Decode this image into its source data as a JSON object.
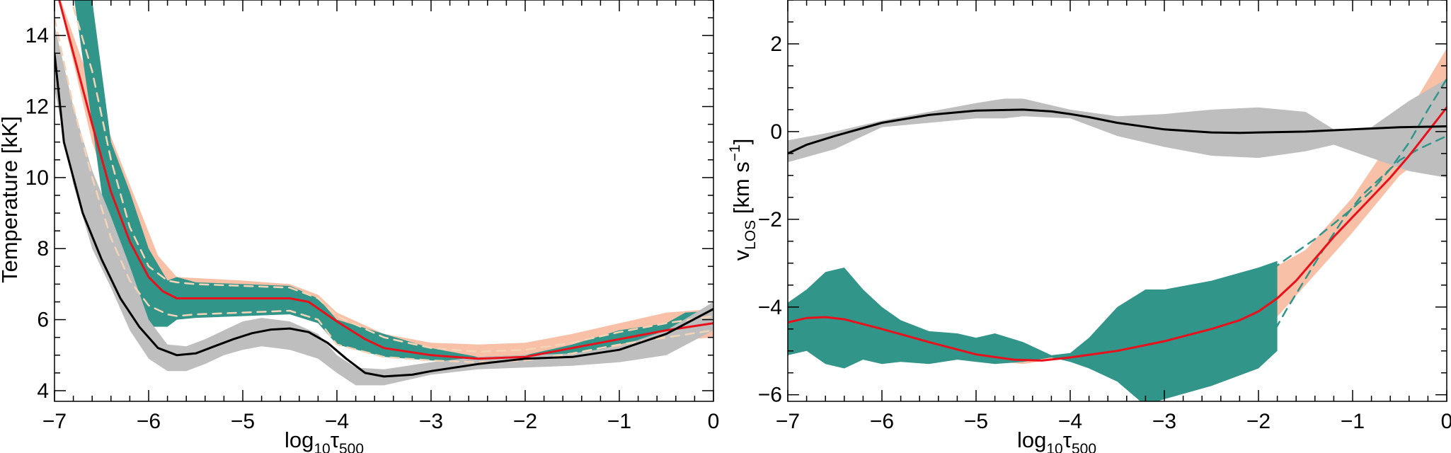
{
  "chart_data": [
    {
      "type": "line",
      "xlabel": {
        "main": "log",
        "sub1": "10",
        "sym": "τ",
        "sub2": "500"
      },
      "ylabel": {
        "text": "Temperature [kK]"
      },
      "xlim": [
        -7,
        0
      ],
      "ylim": [
        3.7,
        15.0
      ],
      "xticks": [
        -7,
        -6,
        -5,
        -4,
        -3,
        -2,
        -1,
        0
      ],
      "xtick_labels": [
        "−7",
        "−6",
        "−5",
        "−4",
        "−3",
        "−2",
        "−1",
        "0"
      ],
      "yticks": [
        4,
        6,
        8,
        10,
        12,
        14
      ],
      "ytick_labels": [
        "4",
        "6",
        "8",
        "10",
        "12",
        "14"
      ],
      "grid": false,
      "colors": {
        "black_band": "#bebebe",
        "teal_band": "#32958a",
        "salmon_band": "#f9c0a8",
        "red_line": "#e8101a",
        "black_line": "#000000",
        "dashed": "#f3d4b6"
      },
      "bands": [
        {
          "color": "salmon",
          "x": [
            -7,
            -6.6,
            -6.2,
            -5.9,
            -5.7,
            -5,
            -4.5,
            -4.2,
            -4,
            -3.5,
            -3,
            -2.5,
            -2,
            -1.5,
            -1,
            -0.5,
            0
          ],
          "upper": [
            15.5,
            12.5,
            9.8,
            7.8,
            7.2,
            7.1,
            7.0,
            6.7,
            6.2,
            5.6,
            5.35,
            5.3,
            5.35,
            5.6,
            5.9,
            6.2,
            6.3
          ],
          "lower": [
            15.5,
            11.0,
            7.8,
            6.2,
            6.1,
            6.25,
            6.3,
            6.0,
            5.4,
            5.0,
            4.85,
            4.8,
            4.85,
            5.05,
            5.2,
            5.4,
            5.5
          ]
        },
        {
          "color": "teal",
          "x": [
            -7,
            -6.8,
            -6.6,
            -6.4,
            -6.2,
            -6.0,
            -5.8,
            -5.7,
            -5.5,
            -5.0,
            -4.5,
            -4.2,
            -4.0,
            -3.5,
            -3.0,
            -2.5,
            -2.0,
            -1.5,
            -1.0,
            -0.5,
            -0.3,
            0
          ],
          "upper": [
            15.5,
            15.5,
            15.0,
            11.0,
            9.6,
            8.0,
            7.1,
            7.2,
            7.05,
            7.0,
            6.95,
            6.6,
            6.0,
            5.6,
            5.2,
            4.95,
            5.0,
            5.3,
            5.7,
            5.9,
            6.2,
            6.25
          ],
          "lower": [
            15.5,
            15.2,
            11.5,
            7.7,
            7.4,
            5.8,
            5.8,
            6.0,
            6.05,
            6.1,
            6.15,
            5.9,
            5.3,
            4.95,
            4.85,
            4.8,
            4.75,
            4.95,
            5.3,
            5.6,
            5.75,
            5.75
          ]
        },
        {
          "color": "gray",
          "x": [
            -7,
            -6.8,
            -6.6,
            -6.4,
            -6.2,
            -6.0,
            -5.8,
            -5.6,
            -5.4,
            -5.2,
            -5.0,
            -4.8,
            -4.5,
            -4.2,
            -4.0,
            -3.8,
            -3.5,
            -3.0,
            -2.5,
            -2.0,
            -1.5,
            -1.0,
            -0.5,
            0
          ],
          "upper": [
            14.3,
            12.0,
            10.2,
            8.9,
            7.5,
            6.0,
            5.3,
            5.25,
            5.45,
            5.7,
            5.95,
            6.05,
            5.95,
            5.6,
            5.0,
            4.65,
            4.6,
            4.8,
            4.95,
            5.0,
            5.05,
            5.25,
            5.7,
            6.5
          ],
          "lower": [
            12.5,
            9.8,
            8.0,
            6.9,
            5.7,
            4.9,
            4.55,
            4.55,
            4.75,
            5.0,
            5.15,
            5.25,
            5.15,
            4.9,
            4.5,
            4.15,
            4.15,
            4.45,
            4.6,
            4.65,
            4.7,
            4.8,
            5.0,
            5.7
          ]
        }
      ],
      "series": [
        {
          "color": "dashed",
          "x": [
            -6.8,
            -6.6,
            -6.4,
            -6.2,
            -6.0,
            -5.8,
            -5.7,
            -5.5,
            -5.0,
            -4.5,
            -4.2,
            -4.0,
            -3.5,
            -3.0,
            -2.5,
            -2.0,
            -1.5,
            -1.0,
            -0.5,
            0
          ],
          "y": [
            14.8,
            13.0,
            10.5,
            8.6,
            7.5,
            7.1,
            7.05,
            7.0,
            6.95,
            6.9,
            6.6,
            6.1,
            5.5,
            5.2,
            5.1,
            5.15,
            5.35,
            5.65,
            5.9,
            6.1
          ]
        },
        {
          "color": "dashed",
          "x": [
            -7,
            -6.8,
            -6.6,
            -6.4,
            -6.2,
            -6.0,
            -5.8,
            -5.7,
            -5.5,
            -5.0,
            -4.5,
            -4.2,
            -4.0,
            -3.5,
            -3.0,
            -2.5,
            -2.0,
            -1.5,
            -1.0,
            -0.5,
            0
          ],
          "y": [
            14.5,
            12.0,
            10.0,
            8.3,
            7.1,
            6.4,
            6.15,
            6.1,
            6.15,
            6.2,
            6.25,
            6.0,
            5.3,
            4.95,
            4.85,
            4.8,
            4.85,
            5.05,
            5.3,
            5.5,
            5.7
          ]
        },
        {
          "color": "red",
          "x": [
            -7,
            -6.8,
            -6.6,
            -6.4,
            -6.2,
            -6.0,
            -5.85,
            -5.7,
            -5.5,
            -5.0,
            -4.5,
            -4.3,
            -4.0,
            -3.7,
            -3.5,
            -3.0,
            -2.5,
            -2.0,
            -1.5,
            -1.0,
            -0.5,
            0
          ],
          "y": [
            15.5,
            13.5,
            11.5,
            9.6,
            8.2,
            7.2,
            6.8,
            6.6,
            6.6,
            6.6,
            6.6,
            6.5,
            5.95,
            5.45,
            5.2,
            5.0,
            4.9,
            4.95,
            5.2,
            5.45,
            5.7,
            5.9
          ]
        },
        {
          "color": "black",
          "x": [
            -7,
            -6.9,
            -6.7,
            -6.5,
            -6.3,
            -6.1,
            -5.9,
            -5.7,
            -5.5,
            -5.3,
            -5.1,
            -4.9,
            -4.7,
            -4.5,
            -4.3,
            -4.1,
            -3.9,
            -3.7,
            -3.5,
            -3.2,
            -3.0,
            -2.5,
            -2.0,
            -1.5,
            -1.0,
            -0.5,
            0
          ],
          "y": [
            13.5,
            11.0,
            9.0,
            7.7,
            6.6,
            5.8,
            5.2,
            5.0,
            5.05,
            5.25,
            5.45,
            5.62,
            5.72,
            5.75,
            5.65,
            5.35,
            4.9,
            4.5,
            4.4,
            4.45,
            4.55,
            4.75,
            4.9,
            4.95,
            5.15,
            5.6,
            6.3
          ]
        }
      ]
    },
    {
      "type": "line",
      "xlabel": {
        "main": "log",
        "sub1": "10",
        "sym": "τ",
        "sub2": "500"
      },
      "ylabel": {
        "main": "v",
        "sub": "LOS",
        "unit_start": " [km s",
        "sup": "−1",
        "unit_end": "]"
      },
      "xlim": [
        -7,
        0
      ],
      "ylim": [
        -6.15,
        3.0
      ],
      "xticks": [
        -7,
        -6,
        -5,
        -4,
        -3,
        -2,
        -1,
        0
      ],
      "xtick_labels": [
        "−7",
        "−6",
        "−5",
        "−4",
        "−3",
        "−2",
        "−1",
        "0"
      ],
      "yticks": [
        -6,
        -4,
        -2,
        0,
        2
      ],
      "ytick_labels": [
        "−6",
        "−4",
        "−2",
        "0",
        "2"
      ],
      "grid": false,
      "colors": {
        "black_band": "#bebebe",
        "teal_band": "#32958a",
        "salmon_band": "#f9c0a8",
        "red_line": "#e8101a",
        "black_line": "#000000",
        "dashed": "#32958a"
      },
      "bands": [
        {
          "color": "salmon",
          "x": [
            -7,
            -6.5,
            -6,
            -5.5,
            -5,
            -4.5,
            -4.2,
            -4,
            -3.5,
            -3,
            -2.5,
            -2,
            -1.5,
            -1,
            -0.5,
            0
          ],
          "upper": [
            -4.0,
            -4.05,
            -4.3,
            -4.6,
            -4.9,
            -5.1,
            -5.15,
            -5.05,
            -4.6,
            -4.1,
            -3.7,
            -3.3,
            -2.7,
            -1.5,
            0.1,
            1.9
          ],
          "lower": [
            -4.6,
            -4.45,
            -4.7,
            -4.95,
            -5.2,
            -5.3,
            -5.2,
            -5.12,
            -5.1,
            -5.05,
            -5.0,
            -4.7,
            -3.5,
            -2.3,
            -1.0,
            -0.2
          ]
        },
        {
          "color": "teal",
          "x": [
            -7,
            -6.8,
            -6.6,
            -6.4,
            -6.2,
            -6.0,
            -5.8,
            -5.5,
            -5.2,
            -5.0,
            -4.8,
            -4.5,
            -4.2,
            -4.0,
            -3.8,
            -3.5,
            -3.2,
            -3.0,
            -2.5,
            -2.0,
            -1.8
          ],
          "upper": [
            -3.9,
            -3.6,
            -3.2,
            -3.1,
            -3.6,
            -4.0,
            -4.3,
            -4.55,
            -4.6,
            -4.7,
            -4.6,
            -4.8,
            -5.1,
            -5.05,
            -4.7,
            -4.0,
            -3.6,
            -3.6,
            -3.4,
            -3.1,
            -2.95
          ],
          "lower": [
            -5.1,
            -5.0,
            -5.3,
            -5.4,
            -5.2,
            -5.3,
            -5.25,
            -5.3,
            -5.2,
            -5.25,
            -5.3,
            -5.25,
            -5.15,
            -5.25,
            -5.4,
            -5.7,
            -6.25,
            -6.1,
            -5.8,
            -5.4,
            -5.0
          ]
        },
        {
          "color": "gray",
          "x": [
            -7,
            -6.5,
            -6,
            -5.5,
            -5,
            -4.7,
            -4.5,
            -4,
            -3.5,
            -3,
            -2.5,
            -2,
            -1.5,
            -1.2,
            -0.8,
            -0.4,
            0
          ],
          "upper": [
            -0.2,
            0.0,
            0.25,
            0.45,
            0.65,
            0.75,
            0.75,
            0.5,
            0.35,
            0.4,
            0.5,
            0.55,
            0.45,
            0.05,
            0.1,
            0.7,
            1.2
          ],
          "lower": [
            -0.7,
            -0.4,
            0.1,
            0.2,
            0.3,
            0.3,
            0.35,
            0.3,
            -0.1,
            -0.35,
            -0.55,
            -0.6,
            -0.45,
            -0.3,
            -0.6,
            -0.9,
            -1.05
          ]
        }
      ],
      "series": [
        {
          "color": "dashed",
          "x": [
            -2.0,
            -1.8,
            -1.6,
            -1.4,
            -1.2,
            -1.0,
            -0.8,
            -0.6,
            -0.4,
            -0.2,
            0
          ],
          "y": [
            -3.3,
            -3.05,
            -2.75,
            -2.45,
            -2.1,
            -1.75,
            -1.35,
            -0.85,
            -0.25,
            0.5,
            1.2
          ]
        },
        {
          "color": "dashed",
          "x": [
            -1.9,
            -1.7,
            -1.5,
            -1.3,
            -1.1,
            -0.9,
            -0.7,
            -0.5,
            -0.3,
            -0.1,
            0
          ],
          "y": [
            -4.8,
            -4.05,
            -3.35,
            -2.65,
            -2.0,
            -1.45,
            -1.05,
            -0.65,
            -0.4,
            -0.2,
            -0.1
          ]
        },
        {
          "color": "red",
          "x": [
            -7,
            -6.8,
            -6.6,
            -6.4,
            -6.0,
            -5.5,
            -5.0,
            -4.6,
            -4.3,
            -4.0,
            -3.5,
            -3.0,
            -2.5,
            -2.2,
            -2.0,
            -1.8,
            -1.6,
            -1.4,
            -1.2,
            -1.0,
            -0.8,
            -0.6,
            -0.4,
            -0.2,
            0
          ],
          "y": [
            -4.35,
            -4.25,
            -4.23,
            -4.28,
            -4.5,
            -4.8,
            -5.08,
            -5.2,
            -5.22,
            -5.15,
            -5.0,
            -4.78,
            -4.5,
            -4.3,
            -4.1,
            -3.8,
            -3.4,
            -2.9,
            -2.4,
            -1.95,
            -1.5,
            -1.05,
            -0.55,
            0.0,
            0.55
          ]
        },
        {
          "color": "black",
          "x": [
            -7,
            -6.8,
            -6.5,
            -6.0,
            -5.5,
            -5.0,
            -4.5,
            -4.2,
            -4.0,
            -3.8,
            -3.5,
            -3.0,
            -2.5,
            -2.2,
            -2.0,
            -1.5,
            -1.0,
            -0.5,
            0
          ],
          "y": [
            -0.5,
            -0.3,
            -0.1,
            0.2,
            0.38,
            0.48,
            0.5,
            0.46,
            0.4,
            0.33,
            0.2,
            0.05,
            -0.02,
            -0.03,
            -0.02,
            0.0,
            0.05,
            0.1,
            0.12
          ]
        }
      ]
    }
  ]
}
